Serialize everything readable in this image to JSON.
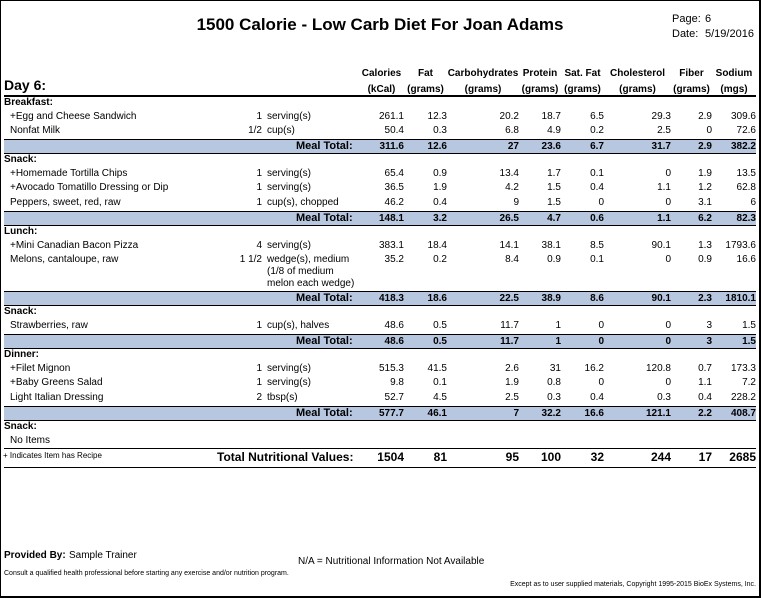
{
  "header": {
    "title": "1500 Calorie - Low Carb Diet For Joan Adams",
    "page_label": "Page:",
    "page_value": "6",
    "date_label": "Date:",
    "date_value": "5/19/2016"
  },
  "day_label": "Day 6:",
  "columns": {
    "cal": [
      "Calories",
      "(kCal)"
    ],
    "fat": [
      "Fat",
      "(grams)"
    ],
    "carb": [
      "Carbohydrates",
      "(grams)"
    ],
    "prot": [
      "Protein",
      "(grams)"
    ],
    "sat": [
      "Sat. Fat",
      "(grams)"
    ],
    "chol": [
      "Cholesterol",
      "(grams)"
    ],
    "fib": [
      "Fiber",
      "(grams)"
    ],
    "sod": [
      "Sodium",
      "(mgs)"
    ]
  },
  "meal_total_label": "Meal Total:",
  "sections": {
    "breakfast": {
      "label": "Breakfast:",
      "items": [
        {
          "name": "+Egg and Cheese Sandwich",
          "qty": "1",
          "unit": "serving(s)",
          "cal": "261.1",
          "fat": "12.3",
          "carb": "20.2",
          "prot": "18.7",
          "sat": "6.5",
          "chol": "29.3",
          "fib": "2.9",
          "sod": "309.6"
        },
        {
          "name": "Nonfat Milk",
          "qty": "1/2",
          "unit": "cup(s)",
          "cal": "50.4",
          "fat": "0.3",
          "carb": "6.8",
          "prot": "4.9",
          "sat": "0.2",
          "chol": "2.5",
          "fib": "0",
          "sod": "72.6"
        }
      ],
      "total": {
        "cal": "311.6",
        "fat": "12.6",
        "carb": "27",
        "prot": "23.6",
        "sat": "6.7",
        "chol": "31.7",
        "fib": "2.9",
        "sod": "382.2"
      }
    },
    "snack1": {
      "label": "Snack:",
      "items": [
        {
          "name": "+Homemade Tortilla Chips",
          "qty": "1",
          "unit": "serving(s)",
          "cal": "65.4",
          "fat": "0.9",
          "carb": "13.4",
          "prot": "1.7",
          "sat": "0.1",
          "chol": "0",
          "fib": "1.9",
          "sod": "13.5"
        },
        {
          "name": "+Avocado Tomatillo Dressing or Dip",
          "qty": "1",
          "unit": "serving(s)",
          "cal": "36.5",
          "fat": "1.9",
          "carb": "4.2",
          "prot": "1.5",
          "sat": "0.4",
          "chol": "1.1",
          "fib": "1.2",
          "sod": "62.8"
        },
        {
          "name": "Peppers, sweet, red, raw",
          "qty": "1",
          "unit": "cup(s), chopped",
          "cal": "46.2",
          "fat": "0.4",
          "carb": "9",
          "prot": "1.5",
          "sat": "0",
          "chol": "0",
          "fib": "3.1",
          "sod": "6"
        }
      ],
      "total": {
        "cal": "148.1",
        "fat": "3.2",
        "carb": "26.5",
        "prot": "4.7",
        "sat": "0.6",
        "chol": "1.1",
        "fib": "6.2",
        "sod": "82.3"
      }
    },
    "lunch": {
      "label": "Lunch:",
      "items": [
        {
          "name": "+Mini Canadian Bacon Pizza",
          "qty": "4",
          "unit": "serving(s)",
          "cal": "383.1",
          "fat": "18.4",
          "carb": "14.1",
          "prot": "38.1",
          "sat": "8.5",
          "chol": "90.1",
          "fib": "1.3",
          "sod": "1793.6"
        },
        {
          "name": "Melons, cantaloupe, raw",
          "qty": "1 1/2",
          "unit": "wedge(s), medium",
          "unit2": "(1/8 of medium",
          "unit3": "melon each wedge)",
          "cal": "35.2",
          "fat": "0.2",
          "carb": "8.4",
          "prot": "0.9",
          "sat": "0.1",
          "chol": "0",
          "fib": "0.9",
          "sod": "16.6"
        }
      ],
      "total": {
        "cal": "418.3",
        "fat": "18.6",
        "carb": "22.5",
        "prot": "38.9",
        "sat": "8.6",
        "chol": "90.1",
        "fib": "2.3",
        "sod": "1810.1"
      }
    },
    "snack2": {
      "label": "Snack:",
      "items": [
        {
          "name": "Strawberries, raw",
          "qty": "1",
          "unit": "cup(s), halves",
          "cal": "48.6",
          "fat": "0.5",
          "carb": "11.7",
          "prot": "1",
          "sat": "0",
          "chol": "0",
          "fib": "3",
          "sod": "1.5"
        }
      ],
      "total": {
        "cal": "48.6",
        "fat": "0.5",
        "carb": "11.7",
        "prot": "1",
        "sat": "0",
        "chol": "0",
        "fib": "3",
        "sod": "1.5"
      }
    },
    "dinner": {
      "label": "Dinner:",
      "items": [
        {
          "name": "+Filet Mignon",
          "qty": "1",
          "unit": "serving(s)",
          "cal": "515.3",
          "fat": "41.5",
          "carb": "2.6",
          "prot": "31",
          "sat": "16.2",
          "chol": "120.8",
          "fib": "0.7",
          "sod": "173.3"
        },
        {
          "name": "+Baby Greens Salad",
          "qty": "1",
          "unit": "serving(s)",
          "cal": "9.8",
          "fat": "0.1",
          "carb": "1.9",
          "prot": "0.8",
          "sat": "0",
          "chol": "0",
          "fib": "1.1",
          "sod": "7.2"
        },
        {
          "name": "Light Italian Dressing",
          "qty": "2",
          "unit": "tbsp(s)",
          "cal": "52.7",
          "fat": "4.5",
          "carb": "2.5",
          "prot": "0.3",
          "sat": "0.4",
          "chol": "0.3",
          "fib": "0.4",
          "sod": "228.2"
        }
      ],
      "total": {
        "cal": "577.7",
        "fat": "46.1",
        "carb": "7",
        "prot": "32.2",
        "sat": "16.6",
        "chol": "121.1",
        "fib": "2.2",
        "sod": "408.7"
      }
    },
    "snack3": {
      "label": "Snack:",
      "empty_text": "No Items"
    }
  },
  "recipe_note": "+ Indicates Item has Recipe",
  "total_nutrition": {
    "label": "Total Nutritional Values:",
    "cal": "1504",
    "fat": "81",
    "carb": "95",
    "prot": "100",
    "sat": "32",
    "chol": "244",
    "fib": "17",
    "sod": "2685"
  },
  "footer": {
    "provided_label": "Provided By:",
    "provided_value": "Sample Trainer",
    "na_note": "N/A = Nutritional Information Not Available",
    "consult": "Consult a qualified health professional before starting any exercise and/or nutrition program.",
    "copyright": "Except as to user supplied materials, Copyright 1995-2015 BioEx Systems, Inc."
  }
}
